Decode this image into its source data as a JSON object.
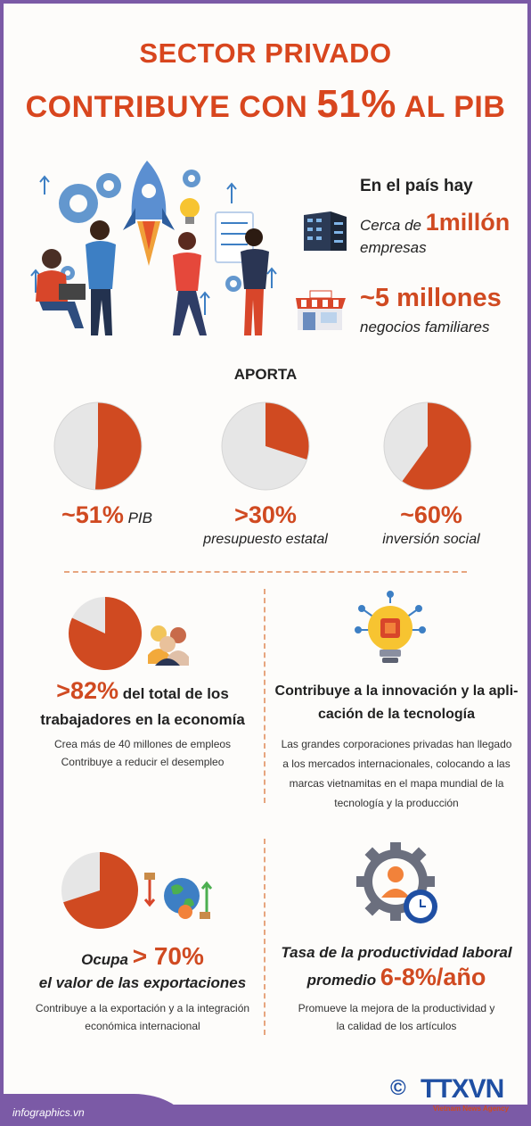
{
  "title": {
    "line1": "SECTOR PRIVADO",
    "line2_pre": "CONTRIBUYE CON ",
    "line2_pct": "51%",
    "line2_post": " AL PIB"
  },
  "country": {
    "heading": "En el país hay",
    "companies": {
      "pre": "Cerca de ",
      "big": "1millón",
      "sub": "empresas"
    },
    "households": {
      "big": "~5 millones",
      "sub": "negocios familiares"
    }
  },
  "aporta": {
    "heading": "APORTA",
    "items": [
      {
        "value": "~51%",
        "label": "PIB",
        "fraction": 0.51
      },
      {
        "value": ">30%",
        "label": "presupuesto estatal",
        "fraction": 0.3
      },
      {
        "value": "~60%",
        "label": "inversión social",
        "fraction": 0.6
      }
    ]
  },
  "workers": {
    "value": ">82%",
    "line1": " del total de los",
    "line2": "trabajadores en la economía",
    "fraction": 0.82,
    "note1": "Crea más de 40 millones de empleos",
    "note2": "Contribuye a reducir el desempleo"
  },
  "innovation": {
    "line1": "Contribuye a la innovación y la apli-",
    "line2": "cación de la tecnología",
    "note1": "Las grandes corporaciones privadas han llegado",
    "note2": "a los mercados internacionales, colocando a las",
    "note3": "marcas vietnamitas en el mapa mundial de la",
    "note4": "tecnología y la producción"
  },
  "exports": {
    "pre": "Ocupa ",
    "value": "> 70%",
    "line2": "el valor de las exportaciones",
    "fraction": 0.7,
    "note1": "Contribuye a la exportación y a la integración",
    "note2": "económica internacional"
  },
  "productivity": {
    "line1": "Tasa de la productividad laboral",
    "pre": "promedio ",
    "value": "6-8%/año",
    "note1": "Promueve la mejora de la productividad y",
    "note2": "la calidad de los artículos"
  },
  "footer": {
    "site": "infographics.vn",
    "copyright": "©",
    "brand": "TTXVN",
    "agency": "Vietnam News Agency"
  },
  "colors": {
    "accent": "#d04a21",
    "purple": "#7b5aa6",
    "pie_rest": "#e6e6e6"
  }
}
